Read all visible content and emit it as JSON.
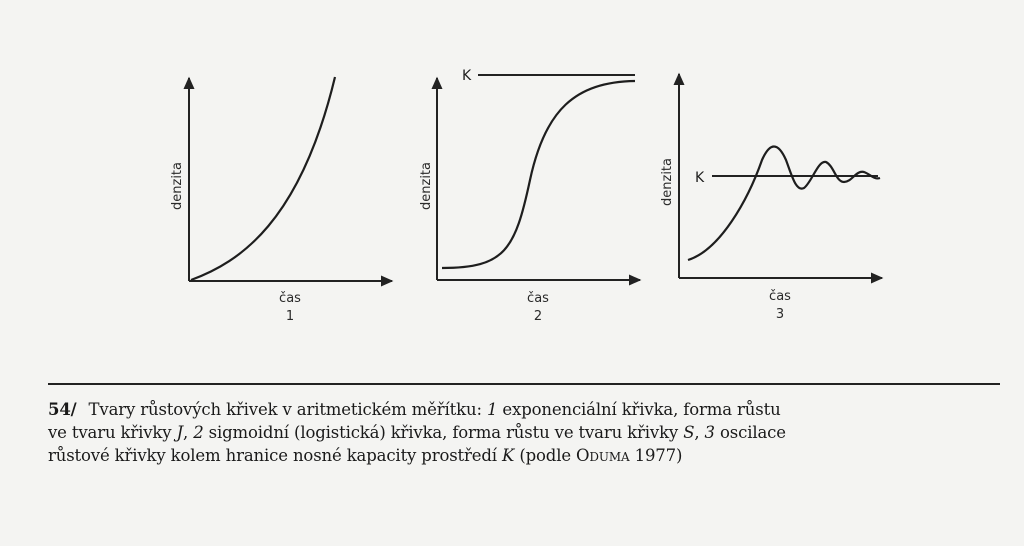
{
  "figure": {
    "panels": [
      {
        "ylabel": "denzita",
        "xlabel": "čas",
        "number": "1"
      },
      {
        "ylabel": "denzita",
        "xlabel": "čas",
        "number": "2",
        "k_label": "K"
      },
      {
        "ylabel": "denzita",
        "xlabel": "čas",
        "number": "3",
        "k_label": "K"
      }
    ]
  },
  "caption": {
    "number": "54/",
    "line1_a": "Tvary růstových křivek v aritmetickém měřítku: ",
    "line1_n1": "1",
    "line1_b": " exponenciální křivka, forma růstu",
    "line2_a": "ve tvaru křivky ",
    "line2_j": "J",
    "line2_b": ", ",
    "line2_n2": "2",
    "line2_c": " sigmoidní (logistická) křivka, forma růstu ve tvaru křivky ",
    "line2_s": "S",
    "line2_d": ", ",
    "line2_n3": "3",
    "line2_e": " oscilace",
    "line3_a": "růstové křivky kolem hranice nosné kapacity prostředí ",
    "line3_k": "K",
    "line3_b": " (podle ",
    "line3_author": "Oduma",
    "line3_c": " 1977)"
  }
}
